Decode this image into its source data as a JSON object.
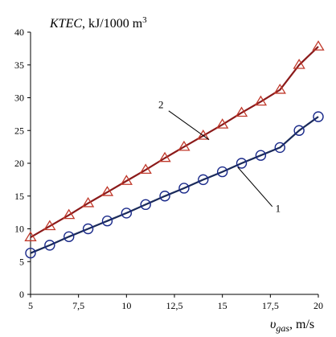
{
  "chart_data": {
    "type": "line",
    "title": "",
    "ylabel_main": "KTEC",
    "ylabel_unit": ", kJ/1000 m",
    "ylabel_sup": "3",
    "xlabel_main": "υ",
    "xlabel_sub": "gas",
    "xlabel_unit": ", m/s",
    "xlim": [
      5,
      20
    ],
    "ylim": [
      0,
      40
    ],
    "x_ticks": [
      5,
      7.5,
      10,
      12.5,
      15,
      17.5,
      20
    ],
    "x_tick_labels": [
      "5",
      "7,5",
      "10",
      "12,5",
      "15",
      "17,5",
      "20"
    ],
    "y_ticks": [
      0,
      5,
      10,
      15,
      20,
      25,
      30,
      35,
      40
    ],
    "y_tick_labels": [
      "0",
      "5",
      "10",
      "15",
      "20",
      "25",
      "30",
      "35",
      "40"
    ],
    "grid": false,
    "legend": "none",
    "series": [
      {
        "name": "1",
        "line_color": "#1a2a5a",
        "marker": "circle",
        "marker_color": "#1a2a8a",
        "x": [
          5,
          6,
          7,
          8,
          9,
          10,
          11,
          12,
          13,
          14,
          15,
          16,
          17,
          18,
          19,
          20
        ],
        "y": [
          6.3,
          7.5,
          8.8,
          10.0,
          11.2,
          12.4,
          13.7,
          15.0,
          16.2,
          17.5,
          18.7,
          20.0,
          21.2,
          22.4,
          25.0,
          27.1
        ]
      },
      {
        "name": "2",
        "line_color": "#8b1a1a",
        "marker": "triangle",
        "marker_color": "#c0392b",
        "x": [
          5,
          6,
          7,
          8,
          9,
          10,
          11,
          12,
          13,
          14,
          15,
          16,
          17,
          18,
          19,
          20
        ],
        "y": [
          8.7,
          10.4,
          12.1,
          13.9,
          15.6,
          17.3,
          19.0,
          20.8,
          22.5,
          24.2,
          25.9,
          27.7,
          29.4,
          31.2,
          35.0,
          37.8
        ]
      }
    ]
  }
}
